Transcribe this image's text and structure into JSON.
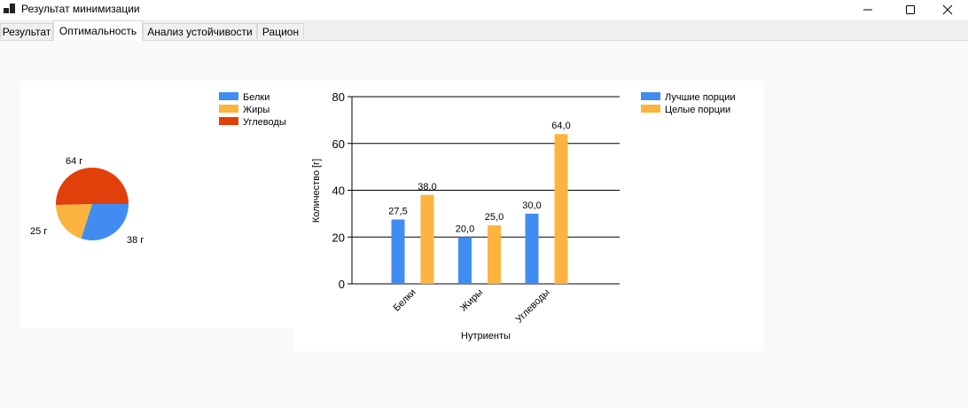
{
  "window": {
    "title": "Результат минимизации",
    "controls": [
      "minimize",
      "maximize",
      "close"
    ]
  },
  "tabs": [
    {
      "label": "Результат"
    },
    {
      "label": "Оптимальность",
      "active": true
    },
    {
      "label": "Анализ устойчивости"
    },
    {
      "label": "Рацион"
    }
  ],
  "chart_data": [
    {
      "type": "pie",
      "labels": [
        "Белки",
        "Жиры",
        "Углеводы"
      ],
      "values": [
        38,
        25,
        64
      ],
      "data_labels": [
        "38 г",
        "25 г",
        "64 г"
      ],
      "colors": [
        "#418cf0",
        "#fcb441",
        "#e0400a"
      ],
      "legend": "top-right"
    },
    {
      "type": "bar",
      "categories": [
        "Белки",
        "Жиры",
        "Углеводы"
      ],
      "series": [
        {
          "name": "Лучшие порции",
          "values": [
            27.5,
            20.0,
            30.0
          ],
          "labels": [
            "27,5",
            "20,0",
            "30,0"
          ],
          "color": "#418cf0"
        },
        {
          "name": "Целые порции",
          "values": [
            38.0,
            25.0,
            64.0
          ],
          "labels": [
            "38,0",
            "25,0",
            "64,0"
          ],
          "color": "#fcb441"
        }
      ],
      "xlabel": "Нутриенты",
      "ylabel": "Количество [г]",
      "ylim": [
        0,
        80
      ],
      "yticks": [
        0,
        20,
        40,
        60,
        80
      ],
      "grid": true,
      "legend": "top-right"
    }
  ]
}
